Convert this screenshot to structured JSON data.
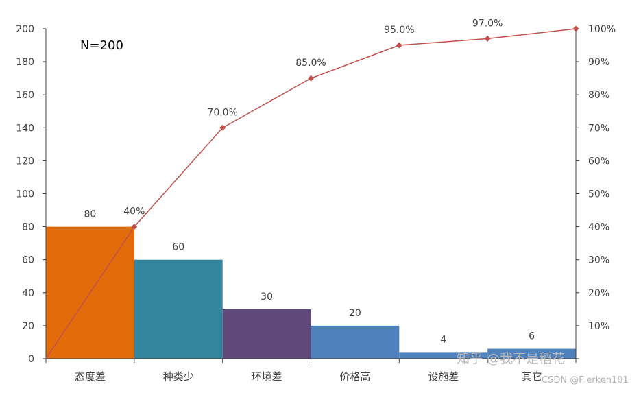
{
  "chart_data": {
    "type": "bar",
    "categories": [
      "态度差",
      "种类少",
      "环境差",
      "价格高",
      "设施差",
      "其它"
    ],
    "values": [
      80,
      60,
      30,
      20,
      4,
      6
    ],
    "value_labels": [
      "80",
      "60",
      "30",
      "20",
      "4",
      "6"
    ],
    "bar_colors": [
      "#e36c0a",
      "#31859c",
      "#604a7b",
      "#4f81bd",
      "#4f81bd",
      "#4f81bd"
    ],
    "cumulative": {
      "x_boundaries": [
        0,
        1,
        2,
        3,
        4,
        5,
        6
      ],
      "values": [
        0,
        40,
        70,
        85,
        95,
        97,
        100
      ],
      "labels": [
        "",
        "40%",
        "70.0%",
        "85.0%",
        "95.0%",
        "97.0%",
        ""
      ],
      "color": "#c0504d"
    },
    "y_left": {
      "min": 0,
      "max": 200,
      "step": 20,
      "ticks": [
        "0",
        "20",
        "40",
        "60",
        "80",
        "100",
        "120",
        "140",
        "160",
        "180",
        "200"
      ]
    },
    "y_right": {
      "min": 0,
      "max": 100,
      "ticks": [
        "10%",
        "20%",
        "30%",
        "40%",
        "50%",
        "60%",
        "70%",
        "80%",
        "90%",
        "100%"
      ]
    },
    "annotation": "N=200",
    "grid": false,
    "legend": "none"
  },
  "watermark": {
    "main": "知乎 @我不是稻花",
    "sub": "CSDN @Flerken101"
  }
}
